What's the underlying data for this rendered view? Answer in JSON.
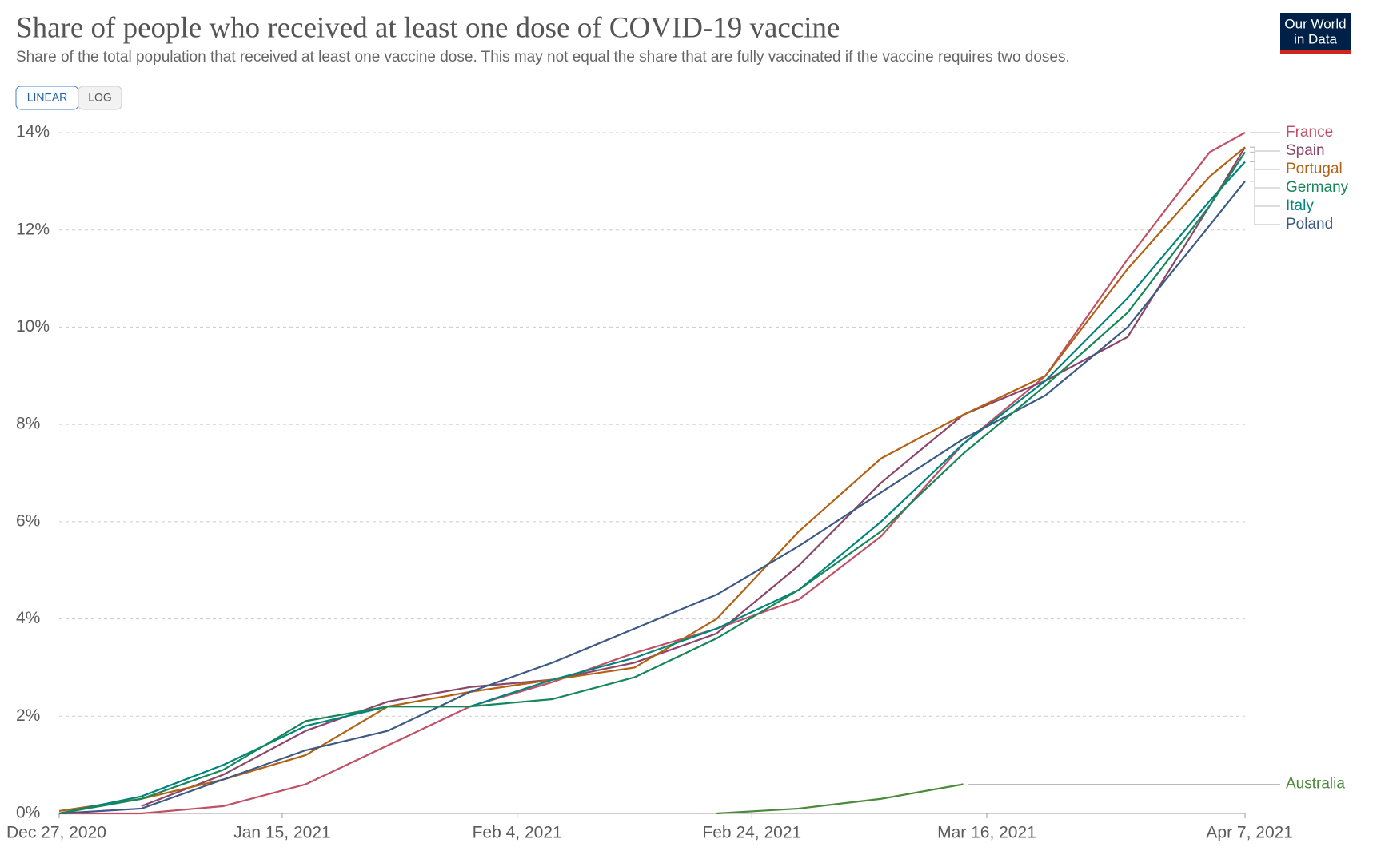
{
  "header": {
    "logo": [
      "Our World",
      "in Data"
    ]
  },
  "scale_buttons": [
    "LINEAR",
    "LOG"
  ],
  "chart_data": {
    "type": "line",
    "title": "Share of people who received at least one dose of COVID-19 vaccine",
    "subtitle": "Share of the total population that received at least one vaccine dose. This may not equal the share that are fully vaccinated if the vaccine requires two doses.",
    "log_scale": false,
    "grid": true,
    "x": [
      "2020-12-27",
      "2021-01-03",
      "2021-01-10",
      "2021-01-17",
      "2021-01-24",
      "2021-01-31",
      "2021-02-07",
      "2021-02-14",
      "2021-02-21",
      "2021-02-28",
      "2021-03-07",
      "2021-03-14",
      "2021-03-21",
      "2021-03-28",
      "2021-04-04",
      "2021-04-07"
    ],
    "xlim": [
      "2020-12-27",
      "2021-04-07"
    ],
    "xticks": [
      {
        "value": "2020-12-27",
        "label": "Dec 27, 2020"
      },
      {
        "value": "2021-01-15",
        "label": "Jan 15, 2021"
      },
      {
        "value": "2021-02-04",
        "label": "Feb 4, 2021"
      },
      {
        "value": "2021-02-24",
        "label": "Feb 24, 2021"
      },
      {
        "value": "2021-03-16",
        "label": "Mar 16, 2021"
      },
      {
        "value": "2021-04-07",
        "label": "Apr 7, 2021"
      }
    ],
    "ylim": [
      0,
      14
    ],
    "yticks": [
      {
        "value": 0,
        "label": "0%"
      },
      {
        "value": 2,
        "label": "2%"
      },
      {
        "value": 4,
        "label": "4%"
      },
      {
        "value": 6,
        "label": "6%"
      },
      {
        "value": 8,
        "label": "8%"
      },
      {
        "value": 10,
        "label": "10%"
      },
      {
        "value": 12,
        "label": "12%"
      },
      {
        "value": 14,
        "label": "14%"
      }
    ],
    "series": [
      {
        "name": "France",
        "color": "#c15065",
        "values": [
          0,
          0,
          0.15,
          0.6,
          1.4,
          2.2,
          2.7,
          3.3,
          3.8,
          4.4,
          5.7,
          7.6,
          9.0,
          11.4,
          13.6,
          14.0
        ]
      },
      {
        "name": "Spain",
        "color": "#8c4569",
        "values": [
          null,
          0.15,
          0.8,
          1.7,
          2.3,
          2.6,
          2.75,
          3.1,
          3.7,
          5.1,
          6.8,
          8.2,
          8.9,
          9.8,
          12.5,
          13.7
        ]
      },
      {
        "name": "Portugal",
        "color": "#b16214",
        "values": [
          0.05,
          0.3,
          0.7,
          1.2,
          2.2,
          2.5,
          2.75,
          3.0,
          4.0,
          5.8,
          7.3,
          8.2,
          9.0,
          11.2,
          13.1,
          13.7
        ]
      },
      {
        "name": "Italy",
        "color": "#00847e",
        "values": [
          0,
          0.35,
          1.0,
          1.8,
          2.2,
          2.2,
          2.75,
          3.2,
          3.8,
          4.6,
          6.0,
          7.6,
          8.9,
          10.6,
          12.6,
          13.4
        ]
      },
      {
        "name": "Poland",
        "color": "#3c5a85",
        "values": [
          0,
          0.1,
          0.7,
          1.3,
          1.7,
          2.5,
          3.1,
          3.8,
          4.5,
          5.5,
          6.6,
          7.7,
          8.6,
          10.0,
          12.1,
          13.0
        ]
      },
      {
        "name": "Germany",
        "color": "#17875a",
        "values": [
          0,
          0.3,
          0.9,
          1.9,
          2.2,
          2.2,
          2.35,
          2.8,
          3.6,
          4.6,
          5.8,
          7.4,
          8.8,
          10.3,
          12.5,
          13.6
        ]
      },
      {
        "name": "Australia",
        "color": "#4b8a3a",
        "values": [
          null,
          null,
          null,
          null,
          null,
          null,
          null,
          null,
          0,
          0.1,
          0.3,
          0.6,
          null,
          null,
          null,
          null
        ]
      }
    ]
  }
}
